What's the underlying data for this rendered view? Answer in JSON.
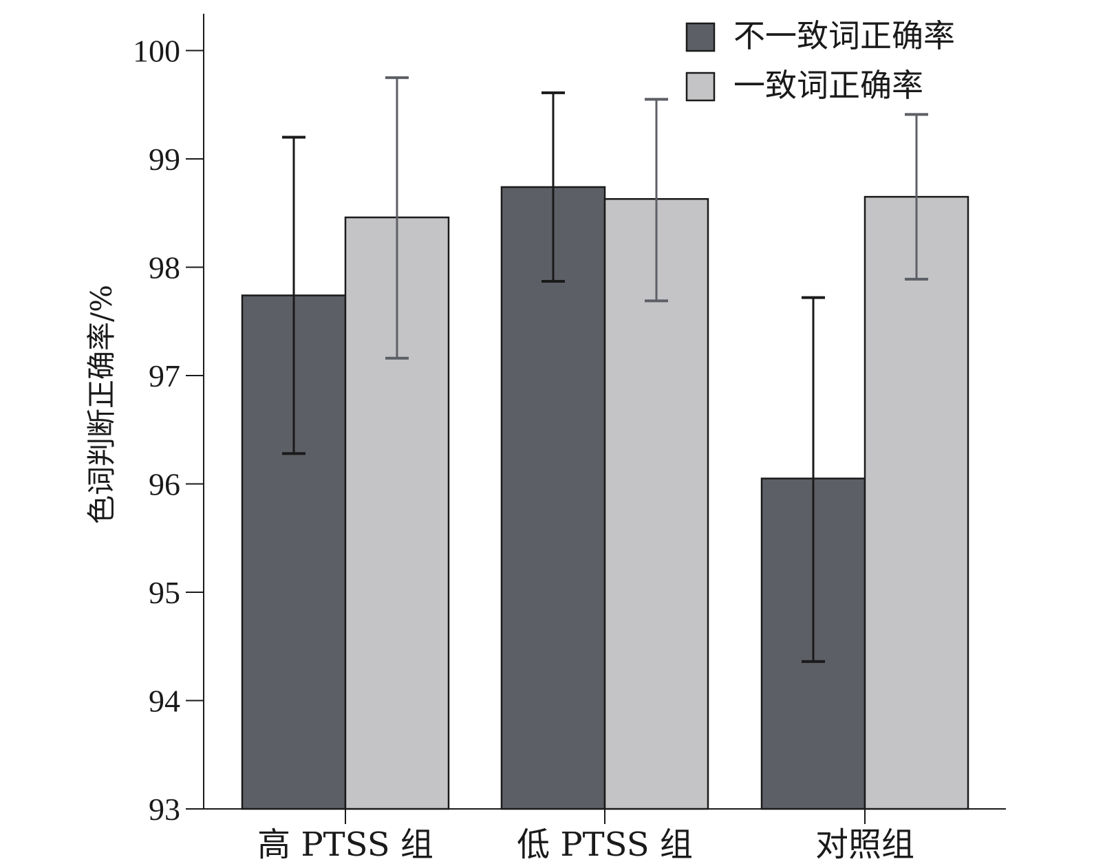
{
  "chart_data": {
    "type": "bar",
    "title": "",
    "xlabel": "",
    "ylabel": "色词判断正确率/%",
    "ylim": [
      93,
      100
    ],
    "yticks": [
      93,
      94,
      95,
      96,
      97,
      98,
      99,
      100
    ],
    "categories": [
      "高 PTSS 组",
      "低 PTSS 组",
      "对照组"
    ],
    "legend_position": "top-right",
    "grid": false,
    "series": [
      {
        "name": "不一致词正确率",
        "color": "#5d5f66",
        "error_color": "#1a1a1a",
        "values": [
          97.74,
          98.74,
          96.05
        ],
        "error_low": [
          96.28,
          97.87,
          94.36
        ],
        "error_high": [
          99.2,
          99.61,
          97.72
        ]
      },
      {
        "name": "一致词正确率",
        "color": "#c4c4c6",
        "error_color": "#5d5f66",
        "values": [
          98.46,
          98.63,
          98.65
        ],
        "error_low": [
          97.16,
          97.69,
          97.89
        ],
        "error_high": [
          99.75,
          99.55,
          99.41
        ]
      }
    ]
  }
}
